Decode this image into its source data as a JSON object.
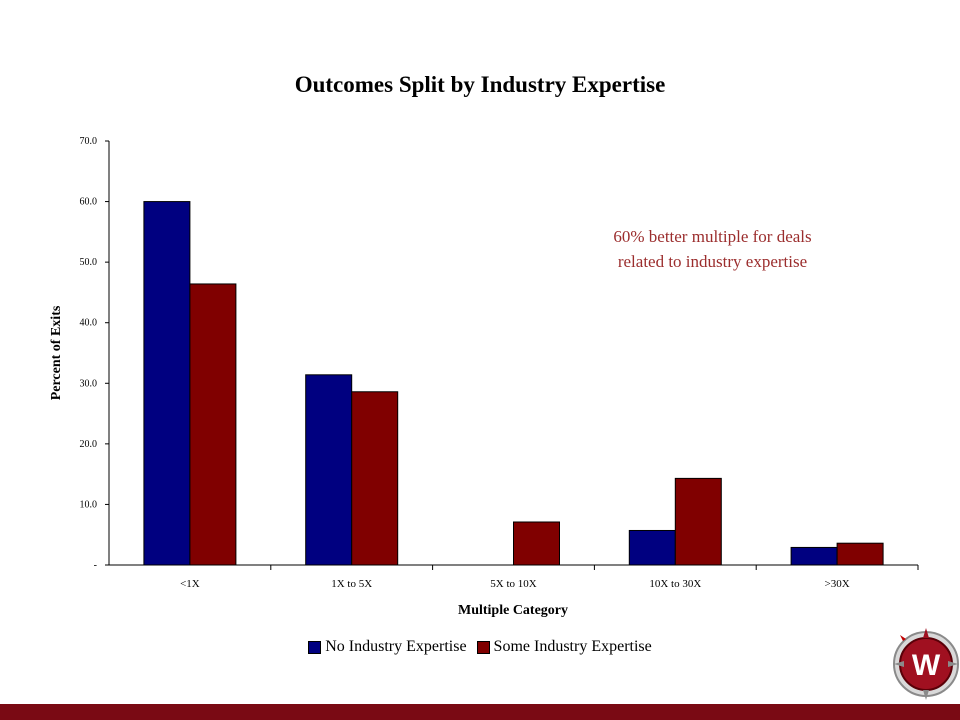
{
  "annotation": {
    "line1": "60% better multiple for deals",
    "line2": "related to industry expertise"
  },
  "colors": {
    "series_no": "#000080",
    "series_some": "#800000",
    "annotation": "#9b2d2d",
    "footer": "#7a0a14"
  },
  "logo": {
    "letter": "W",
    "icon": "compass-w-logo-icon"
  },
  "chart_data": {
    "type": "bar",
    "title": "Outcomes Split by Industry Expertise",
    "xlabel": "Multiple Category",
    "ylabel": "Percent of Exits",
    "categories": [
      "<1X",
      "1X to 5X",
      "5X to 10X",
      "10X to 30X",
      ">30X"
    ],
    "series": [
      {
        "name": "No Industry Expertise",
        "values": [
          60.0,
          31.4,
          0.0,
          5.7,
          2.9
        ]
      },
      {
        "name": "Some Industry Expertise",
        "values": [
          46.4,
          28.6,
          7.1,
          14.3,
          3.6
        ]
      }
    ],
    "ylim": [
      0,
      70
    ],
    "yticks": [
      "-",
      "10.0",
      "20.0",
      "30.0",
      "40.0",
      "50.0",
      "60.0",
      "70.0"
    ],
    "grid": false,
    "legend_position": "bottom"
  }
}
